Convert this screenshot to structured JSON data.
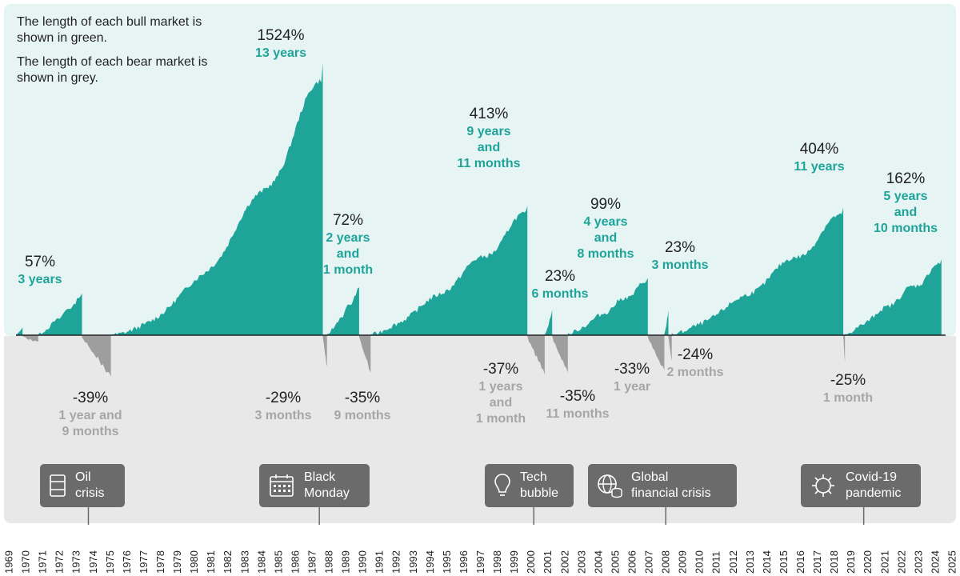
{
  "notes": {
    "bull": "The length of each bull market is shown in green.",
    "bear": "The length of each bear market is shown in grey."
  },
  "colors": {
    "bull_fill": "#1fa49a",
    "bull_bg": "#e6f4f3",
    "bear_fill": "#9e9e9e",
    "bear_bg": "#e8e8e8",
    "event_box": "#6b6b6b"
  },
  "events": [
    {
      "label": "Oil\ncrisis",
      "icon": "oil-barrel-icon",
      "year": 1973
    },
    {
      "label": "Black\nMonday",
      "icon": "calendar-icon",
      "year": 1987
    },
    {
      "label": "Tech\nbubble",
      "icon": "lightbulb-icon",
      "year": 2000
    },
    {
      "label": "Global\nfinancial crisis",
      "icon": "globe-coins-icon",
      "year": 2008
    },
    {
      "label": "Covid-19\npandemic",
      "icon": "virus-icon",
      "year": 2020
    }
  ],
  "chart_data": {
    "type": "area",
    "x_axis": {
      "ticks": [
        "1969",
        "1970",
        "1971",
        "1972",
        "1973",
        "1974",
        "1975",
        "1976",
        "1977",
        "1978",
        "1979",
        "1980",
        "1981",
        "1982",
        "1983",
        "1984",
        "1985",
        "1986",
        "1987",
        "1988",
        "1989",
        "1990",
        "1991",
        "1992",
        "1993",
        "1994",
        "1995",
        "1996",
        "1997",
        "1998",
        "1999",
        "2000",
        "2001",
        "2002",
        "2003",
        "2004",
        "2005",
        "2006",
        "2007",
        "2008",
        "2009",
        "2010",
        "2011",
        "2012",
        "2013",
        "2014",
        "2015",
        "2016",
        "2017",
        "2018",
        "2019",
        "2020",
        "2021",
        "2022",
        "2023",
        "2024",
        "2025"
      ],
      "start": 1969.0,
      "end": 2025.4
    },
    "grid": false,
    "series": [
      {
        "kind": "bull",
        "start": 1969.0,
        "end": 1969.4,
        "gain_pct": 3,
        "pct_label": "",
        "duration": ""
      },
      {
        "kind": "bear",
        "start": 1969.4,
        "end": 1970.35,
        "loss_pct": -6,
        "pct_label": "",
        "duration": ""
      },
      {
        "kind": "bull",
        "start": 1970.35,
        "end": 1973.0,
        "gain_pct": 57,
        "pct_label": "57%",
        "duration": "3 years"
      },
      {
        "kind": "bear",
        "start": 1973.0,
        "end": 1974.75,
        "loss_pct": -39,
        "pct_label": "-39%",
        "duration": "1 year and\n9 months"
      },
      {
        "kind": "bull",
        "start": 1974.75,
        "end": 1987.6,
        "gain_pct": 1524,
        "pct_label": "1524%",
        "duration": "13 years"
      },
      {
        "kind": "bear",
        "start": 1987.6,
        "end": 1987.85,
        "loss_pct": -29,
        "pct_label": "-29%",
        "duration": "3 months"
      },
      {
        "kind": "bull",
        "start": 1987.85,
        "end": 1989.8,
        "gain_pct": 72,
        "pct_label": "72%",
        "duration": "2 years\nand\n1 month"
      },
      {
        "kind": "bear",
        "start": 1989.8,
        "end": 1990.5,
        "loss_pct": -35,
        "pct_label": "-35%",
        "duration": "9 months"
      },
      {
        "kind": "bull",
        "start": 1990.5,
        "end": 2000.0,
        "gain_pct": 413,
        "pct_label": "413%",
        "duration": "9 years\nand\n11 months"
      },
      {
        "kind": "bear",
        "start": 2000.0,
        "end": 2001.05,
        "loss_pct": -37,
        "pct_label": "-37%",
        "duration": "1 years\nand\n1 month"
      },
      {
        "kind": "bull",
        "start": 2001.05,
        "end": 2001.5,
        "gain_pct": 23,
        "pct_label": "23%",
        "duration": "6 months"
      },
      {
        "kind": "bear",
        "start": 2001.5,
        "end": 2002.45,
        "loss_pct": -35,
        "pct_label": "-35%",
        "duration": "11 months"
      },
      {
        "kind": "bull",
        "start": 2002.45,
        "end": 2007.3,
        "gain_pct": 99,
        "pct_label": "99%",
        "duration": "4 years\nand\n8 months"
      },
      {
        "kind": "bear",
        "start": 2007.3,
        "end": 2008.3,
        "loss_pct": -33,
        "pct_label": "-33%",
        "duration": "1 year"
      },
      {
        "kind": "bull",
        "start": 2008.3,
        "end": 2008.55,
        "gain_pct": 23,
        "pct_label": "23%",
        "duration": "3 months"
      },
      {
        "kind": "bear",
        "start": 2008.55,
        "end": 2008.75,
        "loss_pct": -24,
        "pct_label": "-24%",
        "duration": "2 months"
      },
      {
        "kind": "bull",
        "start": 2008.75,
        "end": 2019.15,
        "gain_pct": 404,
        "pct_label": "404%",
        "duration": "11 years"
      },
      {
        "kind": "bear",
        "start": 2019.15,
        "end": 2019.25,
        "loss_pct": -25,
        "pct_label": "-25%",
        "duration": "1 month"
      },
      {
        "kind": "bull",
        "start": 2019.25,
        "end": 2025.1,
        "gain_pct": 162,
        "pct_label": "162%",
        "duration": "5 years\nand\n10 months"
      }
    ]
  }
}
